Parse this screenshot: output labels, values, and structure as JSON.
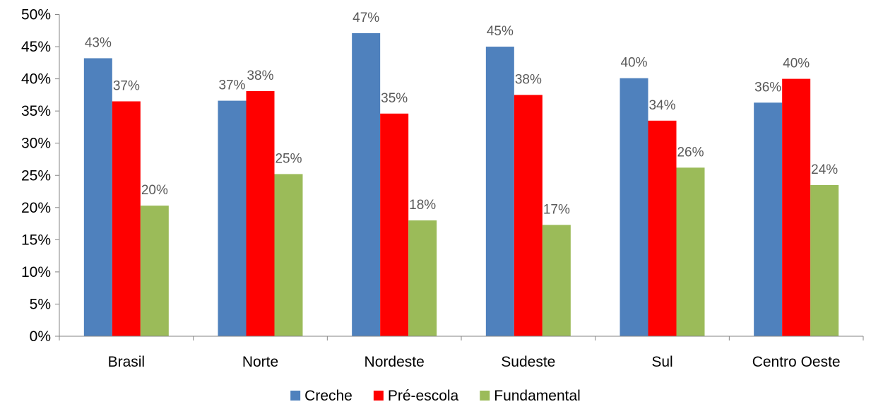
{
  "chart_data": {
    "type": "bar",
    "title": "",
    "xlabel": "",
    "ylabel": "",
    "ylim": [
      0,
      50
    ],
    "y_ticks": [
      "0%",
      "5%",
      "10%",
      "15%",
      "20%",
      "25%",
      "30%",
      "35%",
      "40%",
      "45%",
      "50%"
    ],
    "categories": [
      "Brasil",
      "Norte",
      "Nordeste",
      "Sudeste",
      "Sul",
      "Centro Oeste"
    ],
    "series": [
      {
        "name": "Creche",
        "color": "#4F81BD",
        "values": [
          43.2,
          36.6,
          47.1,
          45.0,
          40.1,
          36.3
        ],
        "labels": [
          "43%",
          "37%",
          "47%",
          "45%",
          "40%",
          "36%"
        ]
      },
      {
        "name": "Pré-escola",
        "color": "#FF0000",
        "values": [
          36.5,
          38.1,
          34.6,
          37.5,
          33.5,
          40.0
        ],
        "labels": [
          "37%",
          "38%",
          "35%",
          "38%",
          "34%",
          "40%"
        ]
      },
      {
        "name": "Fundamental",
        "color": "#9BBB59",
        "values": [
          20.3,
          25.2,
          18.0,
          17.3,
          26.2,
          23.5
        ],
        "labels": [
          "20%",
          "25%",
          "18%",
          "17%",
          "26%",
          "24%"
        ]
      }
    ],
    "grid": false,
    "legend": "bottom"
  }
}
